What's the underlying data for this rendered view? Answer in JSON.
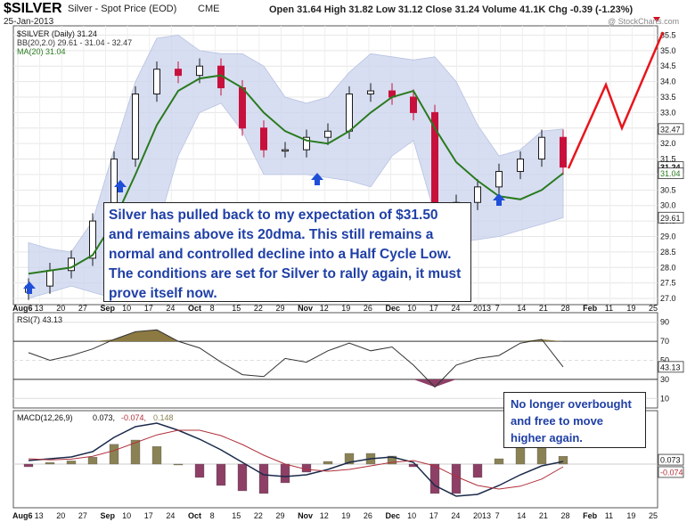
{
  "header": {
    "symbol": "$SILVER",
    "name": "Silver - Spot Price (EOD)",
    "exchange": "CME",
    "date": "25-Jan-2013",
    "quote": "Open 31.64 High 31.82 Low 31.12 Close 31.24 Volume 41.1K Chg -0.39 (-1.23%)",
    "watermark": "@ StockCharts.com"
  },
  "legend": {
    "price": "$SILVER (Daily) 31.24",
    "bb": "BB(20,2.0) 29.61 - 31.04 - 32.47",
    "ma": "MA(20) 31.04",
    "rsi": "RSI(7) 43.13",
    "macd_label": "MACD(12,26,9)",
    "macd_value": "0.073,",
    "macd_signal": "-0.074,",
    "macd_hist": "0.148"
  },
  "annotations": {
    "main": "Silver has pulled back to my expectation of $31.50 and remains above its 20dma.  This still remains a normal and controlled decline into a Half Cycle Low.  The conditions are set for Silver to rally again, it must prove itself now.",
    "rsi": "No longer overbought and free to move higher again."
  },
  "axis_labels": {
    "x": [
      "Aug6",
      "13",
      "20",
      "27",
      "Sep10",
      "17",
      "24",
      "Oct",
      "8",
      "15",
      "22",
      "29Nov",
      "12",
      "19",
      "26",
      "Dec10",
      "17",
      "24",
      "20137",
      "14",
      "21",
      "28 Feb",
      "11",
      "19",
      "25"
    ],
    "x_main": [
      "Aug6",
      "13",
      "20",
      "27",
      "Sep",
      "10",
      "17",
      "24",
      "Oct",
      "8",
      "15",
      "22",
      "29",
      "Nov",
      "12",
      "19",
      "26",
      "Dec",
      "10",
      "17",
      "24",
      "2013",
      "7",
      "14",
      "21",
      "28",
      "Feb",
      "11",
      "19",
      "25"
    ],
    "price_ticks": [
      "35.5",
      "35.0",
      "34.5",
      "34.0",
      "33.5",
      "33.0",
      "32.5",
      "32.0",
      "31.5",
      "31.0",
      "30.5",
      "30.0",
      "29.5",
      "29.0",
      "28.5",
      "28.0",
      "27.5",
      "27.0"
    ],
    "price_boxes": [
      "32.47",
      "31.24",
      "31.04",
      "29.61"
    ],
    "rsi_ticks": [
      "90",
      "70",
      "50",
      "30",
      "10"
    ],
    "rsi_box": "43.13",
    "macd_boxes": [
      "0.073",
      "-0.074"
    ]
  },
  "colors": {
    "up": "#1a1a1a",
    "down": "#c8103c",
    "ma": "#2a7a1f",
    "band": "#c9d3ec",
    "projection": "#e8151c",
    "arrow": "#1f4fd8",
    "rsi_fill": "#8c7a42",
    "macd_pos": "#8a8255",
    "macd_neg": "#8d3f66",
    "note_text": "#1f3fa6"
  },
  "chart_data": [
    {
      "type": "line",
      "title": "$SILVER (Daily)",
      "ylim": [
        26.8,
        35.8
      ],
      "x": [
        "Aug 6",
        "Aug 13",
        "Aug 20",
        "Aug 27",
        "Sep 4",
        "Sep 10",
        "Sep 17",
        "Sep 24",
        "Oct 1",
        "Oct 8",
        "Oct 15",
        "Oct 22",
        "Oct 29",
        "Nov 5",
        "Nov 12",
        "Nov 19",
        "Nov 26",
        "Dec 3",
        "Dec 10",
        "Dec 17",
        "Dec 24",
        "Dec 31",
        "Jan 7",
        "Jan 14",
        "Jan 21",
        "Jan 25"
      ],
      "series": [
        {
          "name": "$SILVER",
          "values": [
            27.4,
            27.9,
            28.3,
            29.5,
            31.5,
            33.6,
            34.4,
            34.2,
            34.5,
            33.8,
            32.5,
            31.8,
            31.8,
            32.2,
            32.4,
            33.6,
            33.7,
            33.5,
            33.0,
            29.8,
            30.1,
            30.6,
            31.1,
            31.5,
            32.2,
            31.24
          ]
        },
        {
          "name": "MA(20)",
          "values": [
            27.8,
            27.9,
            28.0,
            28.4,
            29.5,
            31.0,
            32.6,
            33.7,
            34.1,
            34.2,
            33.8,
            33.0,
            32.4,
            32.1,
            32.0,
            32.4,
            33.0,
            33.5,
            33.7,
            32.5,
            31.4,
            30.8,
            30.3,
            30.2,
            30.5,
            31.04
          ]
        },
        {
          "name": "BB upper",
          "values": [
            28.8,
            28.6,
            28.5,
            29.5,
            31.8,
            34.0,
            35.4,
            35.5,
            35.0,
            34.9,
            34.9,
            34.5,
            33.5,
            33.3,
            33.5,
            34.3,
            34.9,
            34.8,
            34.7,
            34.8,
            34.0,
            32.6,
            31.6,
            31.8,
            32.4,
            32.47
          ]
        },
        {
          "name": "BB lower",
          "values": [
            27.0,
            27.2,
            27.4,
            27.2,
            27.0,
            27.5,
            29.2,
            31.6,
            33.0,
            33.3,
            32.4,
            31.0,
            31.0,
            31.0,
            30.9,
            30.8,
            30.6,
            31.6,
            32.1,
            29.7,
            28.8,
            28.9,
            29.0,
            29.2,
            29.4,
            29.61
          ]
        }
      ],
      "projection": [
        {
          "x": "Jan 28",
          "y": 31.2
        },
        {
          "x": "Feb 8",
          "y": 33.9
        },
        {
          "x": "Feb 14",
          "y": 32.5
        },
        {
          "x": "Feb 28",
          "y": 35.6
        }
      ]
    },
    {
      "type": "line",
      "title": "RSI(7)",
      "ylim": [
        0,
        100
      ],
      "values": [
        58,
        50,
        55,
        62,
        72,
        80,
        82,
        70,
        63,
        48,
        35,
        33,
        52,
        48,
        60,
        68,
        60,
        64,
        45,
        22,
        45,
        52,
        55,
        68,
        72,
        43.13
      ]
    },
    {
      "type": "bar",
      "title": "MACD(12,26,9)",
      "series": [
        {
          "name": "MACD",
          "values": [
            0.1,
            0.15,
            0.2,
            0.35,
            0.75,
            1.05,
            1.15,
            0.95,
            0.7,
            0.4,
            0.05,
            -0.3,
            -0.35,
            -0.3,
            -0.15,
            0.05,
            0.15,
            0.2,
            0.05,
            -0.6,
            -0.9,
            -0.85,
            -0.6,
            -0.3,
            -0.05,
            0.073
          ]
        },
        {
          "name": "Signal",
          "values": [
            0.15,
            0.12,
            0.14,
            0.22,
            0.38,
            0.6,
            0.82,
            0.95,
            0.95,
            0.8,
            0.55,
            0.25,
            0.0,
            -0.15,
            -0.2,
            -0.15,
            -0.05,
            0.05,
            0.1,
            -0.05,
            -0.35,
            -0.6,
            -0.7,
            -0.62,
            -0.42,
            -0.074
          ]
        },
        {
          "name": "Histogram",
          "values": [
            -0.05,
            0.03,
            0.06,
            0.13,
            0.37,
            0.45,
            0.33,
            0.0,
            -0.25,
            -0.4,
            -0.5,
            -0.55,
            -0.35,
            -0.15,
            0.05,
            0.2,
            0.2,
            0.15,
            -0.05,
            -0.55,
            -0.55,
            -0.25,
            0.1,
            0.32,
            0.37,
            0.148
          ]
        }
      ]
    }
  ]
}
